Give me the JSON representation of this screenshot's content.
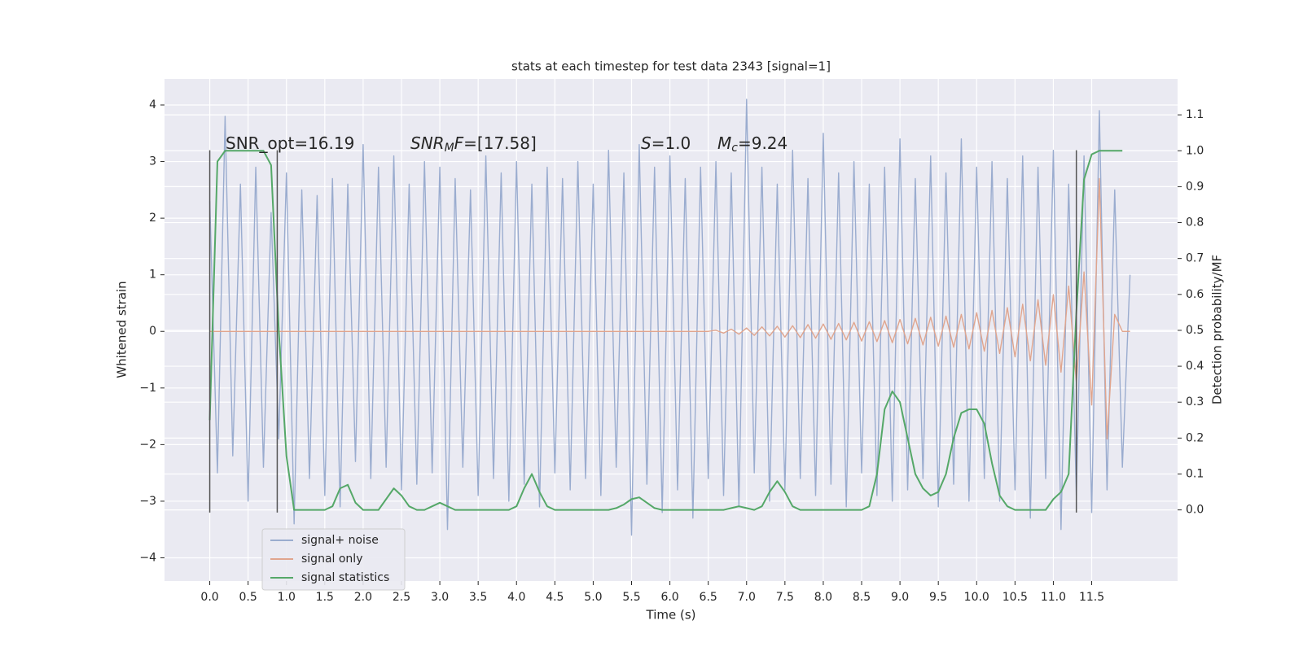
{
  "chart_data": {
    "type": "line",
    "title": "stats at each timestep for test data 2343 [signal=1]",
    "xlabel": "Time (s)",
    "ylabel": "Whitened strain",
    "y2label": "Detection probability/MF",
    "annotations": [
      [
        {
          "text": "SNR_opt=16.19"
        }
      ],
      [
        {
          "text": "SNR",
          "italic": true
        },
        {
          "text": "M",
          "italic": true,
          "sub": true
        },
        {
          "text": "F",
          "italic": true
        },
        {
          "text": "=[17.58]"
        }
      ],
      [
        {
          "text": "S",
          "italic": true
        },
        {
          "text": "=1.0"
        }
      ],
      [
        {
          "text": "M",
          "italic": true
        },
        {
          "text": "c",
          "italic": true,
          "sub": true
        },
        {
          "text": "=9.24"
        }
      ]
    ],
    "x": [
      0,
      0.1,
      0.2,
      0.3,
      0.4,
      0.5,
      0.6,
      0.7,
      0.8,
      0.9,
      1,
      1.1,
      1.2,
      1.3,
      1.4,
      1.5,
      1.6,
      1.7,
      1.8,
      1.9,
      2,
      2.1,
      2.2,
      2.3,
      2.4,
      2.5,
      2.6,
      2.7,
      2.8,
      2.9,
      3,
      3.1,
      3.2,
      3.3,
      3.4,
      3.5,
      3.6,
      3.7,
      3.8,
      3.9,
      4,
      4.1,
      4.2,
      4.3,
      4.4,
      4.5,
      4.6,
      4.7,
      4.8,
      4.9,
      5,
      5.1,
      5.2,
      5.3,
      5.4,
      5.5,
      5.6,
      5.7,
      5.8,
      5.9,
      6,
      6.1,
      6.2,
      6.3,
      6.4,
      6.5,
      6.6,
      6.7,
      6.8,
      6.9,
      7,
      7.1,
      7.2,
      7.3,
      7.4,
      7.5,
      7.6,
      7.7,
      7.8,
      7.9,
      8,
      8.1,
      8.2,
      8.3,
      8.4,
      8.5,
      8.6,
      8.7,
      8.8,
      8.9,
      9,
      9.1,
      9.2,
      9.3,
      9.4,
      9.5,
      9.6,
      9.7,
      9.8,
      9.9,
      10,
      10.1,
      10.2,
      10.3,
      10.4,
      10.5,
      10.6,
      10.7,
      10.8,
      10.9,
      11,
      11.1,
      11.2,
      11.3,
      11.4,
      11.5,
      11.6,
      11.7,
      11.8,
      11.9,
      12
    ],
    "series": [
      {
        "name": "signal+ noise",
        "color": "#9aaccf",
        "values": [
          2.3,
          -2.5,
          3.8,
          -2.2,
          2.6,
          -3.0,
          2.9,
          -2.4,
          2.1,
          -1.9,
          2.8,
          -3.4,
          2.5,
          -2.6,
          2.4,
          -2.9,
          2.7,
          -3.1,
          2.6,
          -2.3,
          3.3,
          -2.6,
          2.9,
          -2.4,
          3.1,
          -2.8,
          2.6,
          -2.7,
          3.0,
          -2.5,
          2.9,
          -3.5,
          2.7,
          -2.4,
          2.5,
          -2.9,
          3.1,
          -2.6,
          2.8,
          -3.0,
          3.0,
          -2.7,
          2.6,
          -3.1,
          2.9,
          -2.5,
          2.7,
          -2.8,
          3.0,
          -2.6,
          2.6,
          -2.9,
          3.2,
          -2.4,
          2.8,
          -3.6,
          3.3,
          -2.7,
          2.9,
          -3.2,
          3.1,
          -2.8,
          2.7,
          -3.3,
          2.9,
          -2.6,
          3.0,
          -2.9,
          2.8,
          -3.1,
          4.1,
          -2.5,
          2.9,
          -3.0,
          2.6,
          -2.8,
          3.2,
          -2.6,
          2.7,
          -2.9,
          3.5,
          -2.7,
          2.8,
          -3.1,
          3.0,
          -2.5,
          2.6,
          -2.9,
          2.9,
          -3.0,
          3.4,
          -2.8,
          2.7,
          -2.6,
          3.1,
          -3.1,
          2.8,
          -2.7,
          3.4,
          -3.0,
          2.9,
          -2.6,
          3.0,
          -3.0,
          2.7,
          -2.8,
          3.1,
          -3.3,
          2.9,
          -2.6,
          3.2,
          -3.5,
          2.6,
          -2.9,
          3.1,
          -3.2,
          3.9,
          -2.8,
          2.5,
          -2.4,
          1.0
        ]
      },
      {
        "name": "signal only",
        "color": "#e0a58e",
        "values": [
          0,
          0,
          0,
          0,
          0,
          0,
          0,
          0,
          0,
          0,
          0,
          0,
          0,
          0,
          0,
          0,
          0,
          0,
          0,
          0,
          0,
          0,
          0,
          0,
          0,
          0,
          0,
          0,
          0,
          0,
          0,
          0,
          0,
          0,
          0,
          0,
          0,
          0,
          0,
          0,
          0,
          0,
          0,
          0,
          0,
          0,
          0,
          0,
          0,
          0,
          0,
          0,
          0,
          0,
          0,
          0,
          0,
          0,
          0,
          0,
          0,
          0,
          0,
          0,
          0,
          0,
          0.02,
          -0.03,
          0.04,
          -0.05,
          0.06,
          -0.07,
          0.08,
          -0.08,
          0.09,
          -0.1,
          0.1,
          -0.11,
          0.12,
          -0.12,
          0.13,
          -0.14,
          0.14,
          -0.15,
          0.16,
          -0.17,
          0.17,
          -0.18,
          0.19,
          -0.2,
          0.21,
          -0.22,
          0.23,
          -0.24,
          0.25,
          -0.26,
          0.27,
          -0.28,
          0.3,
          -0.31,
          0.33,
          -0.35,
          0.37,
          -0.39,
          0.42,
          -0.45,
          0.48,
          -0.52,
          0.56,
          -0.6,
          0.65,
          -0.72,
          0.8,
          -0.9,
          1.05,
          -1.3,
          2.7,
          -1.9,
          0.3,
          0,
          0
        ]
      },
      {
        "name": "signal statistics",
        "color": "#55a868",
        "axis": "y2",
        "values": [
          0.25,
          0.97,
          1.0,
          1.0,
          1.0,
          1.0,
          1.0,
          1.0,
          0.96,
          0.5,
          0.15,
          0.0,
          0.0,
          0.0,
          0.0,
          0.0,
          0.01,
          0.06,
          0.07,
          0.02,
          0.0,
          0.0,
          0.0,
          0.03,
          0.06,
          0.04,
          0.01,
          0.0,
          0.0,
          0.01,
          0.02,
          0.01,
          0.0,
          0.0,
          0.0,
          0.0,
          0.0,
          0.0,
          0.0,
          0.0,
          0.01,
          0.06,
          0.1,
          0.05,
          0.01,
          0.0,
          0.0,
          0.0,
          0.0,
          0.0,
          0.0,
          0.0,
          0.0,
          0.005,
          0.015,
          0.03,
          0.035,
          0.02,
          0.005,
          0.0,
          0.0,
          0.0,
          0.0,
          0.0,
          0.0,
          0.0,
          0.0,
          0.0,
          0.005,
          0.01,
          0.005,
          0.0,
          0.01,
          0.05,
          0.08,
          0.05,
          0.01,
          0.0,
          0.0,
          0.0,
          0.0,
          0.0,
          0.0,
          0.0,
          0.0,
          0.0,
          0.01,
          0.1,
          0.28,
          0.33,
          0.3,
          0.2,
          0.1,
          0.06,
          0.04,
          0.05,
          0.1,
          0.2,
          0.27,
          0.28,
          0.28,
          0.24,
          0.13,
          0.04,
          0.01,
          0.0,
          0.0,
          0.0,
          0.0,
          0.0,
          0.03,
          0.05,
          0.1,
          0.55,
          0.92,
          0.99,
          1.0,
          1.0,
          1.0,
          1.0,
          null
        ]
      }
    ],
    "vlines": [
      0,
      0.88,
      11.3
    ],
    "vline_span": [
      -3.2,
      3.2
    ],
    "vline_color": "#555555",
    "xlim": [
      -0.59,
      12.62
    ],
    "xticks": [
      {
        "value": 0,
        "label": "0.0"
      },
      0.5,
      {
        "value": 1,
        "label": "1.0"
      },
      1.5,
      {
        "value": 2,
        "label": "2.0"
      },
      2.5,
      {
        "value": 3,
        "label": "3.0"
      },
      3.5,
      {
        "value": 4,
        "label": "4.0"
      },
      4.5,
      {
        "value": 5,
        "label": "5.0"
      },
      5.5,
      {
        "value": 6,
        "label": "6.0"
      },
      6.5,
      {
        "value": 7,
        "label": "7.0"
      },
      7.5,
      {
        "value": 8,
        "label": "8.0"
      },
      8.5,
      {
        "value": 9,
        "label": "9.0"
      },
      9.5,
      {
        "value": 10,
        "label": "10.0"
      },
      10.5,
      {
        "value": 11,
        "label": "11.0"
      },
      11.5
    ],
    "ylim": [
      -4.41,
      4.46
    ],
    "yticks": [
      {
        "value": -4,
        "label": "−4"
      },
      {
        "value": -3,
        "label": "−3"
      },
      {
        "value": -2,
        "label": "−2"
      },
      {
        "value": -1,
        "label": "−1"
      },
      0,
      1,
      2,
      3,
      4
    ],
    "y2lim": [
      -0.198,
      1.2
    ],
    "y2ticks": [
      {
        "value": 0,
        "label": "0.0"
      },
      0.1,
      0.2,
      0.3,
      0.4,
      0.5,
      0.6,
      0.7,
      0.8,
      0.9,
      {
        "value": 1,
        "label": "1.0"
      },
      1.1
    ],
    "grid": true,
    "legend": "lower left",
    "background": "#eaeaf2"
  }
}
